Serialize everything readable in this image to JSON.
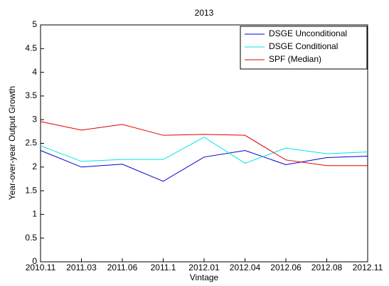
{
  "chart_data": {
    "type": "line",
    "title": "2013",
    "x_label": "Vintage",
    "y_label": "Year-over-year Output Growth",
    "categories": [
      "2010.11",
      "2011.03",
      "2011.06",
      "2011.1",
      "2012.01",
      "2012.04",
      "2012.06",
      "2012.08",
      "2012.11"
    ],
    "series": [
      {
        "name": "DSGE Unconditional",
        "color": "#0000cc",
        "values": [
          2.35,
          2.0,
          2.06,
          1.7,
          2.21,
          2.35,
          2.05,
          2.2,
          2.23
        ]
      },
      {
        "name": "DSGE Conditional",
        "color": "#00e5e5",
        "values": [
          2.45,
          2.12,
          2.16,
          2.16,
          2.63,
          2.08,
          2.4,
          2.28,
          2.32
        ]
      },
      {
        "name": "SPF (Median)",
        "color": "#e00000",
        "values": [
          2.96,
          2.78,
          2.9,
          2.67,
          2.69,
          2.67,
          2.15,
          2.03,
          2.03
        ]
      }
    ],
    "ylim": [
      0,
      5
    ],
    "yticks": [
      0,
      0.5,
      1,
      1.5,
      2,
      2.5,
      3,
      3.5,
      4,
      4.5,
      5
    ],
    "legend": "top-right",
    "grid": false
  }
}
